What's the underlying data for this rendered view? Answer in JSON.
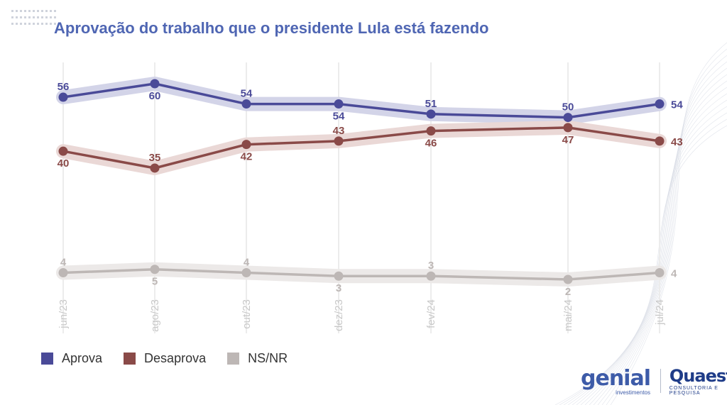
{
  "title": "Aprovação do trabalho que o presidente Lula está fazendo",
  "chart_data": {
    "type": "line",
    "categories": [
      "jun/23",
      "ago/23",
      "out/23",
      "dez/23",
      "fev/24",
      "mai/24",
      "jul/24"
    ],
    "series": [
      {
        "name": "Aprova",
        "values": [
          56,
          60,
          54,
          54,
          51,
          50,
          54
        ],
        "color": "#4a4a98",
        "band": "#d3d4e8"
      },
      {
        "name": "Desaprova",
        "values": [
          40,
          35,
          42,
          43,
          46,
          47,
          43
        ],
        "color": "#8a4a48",
        "band": "#ead8d6"
      },
      {
        "name": "NS/NR",
        "values": [
          4,
          5,
          4,
          3,
          3,
          2,
          4
        ],
        "color": "#bdb7b5",
        "band": "#ece9e8"
      }
    ],
    "grid": "vertical",
    "legend": "bottom-left"
  },
  "logos": {
    "genial": {
      "name": "genial",
      "sub": "investimentos"
    },
    "quaest": {
      "name": "Quaest",
      "sub": "CONSULTORIA E PESQUISA"
    }
  }
}
